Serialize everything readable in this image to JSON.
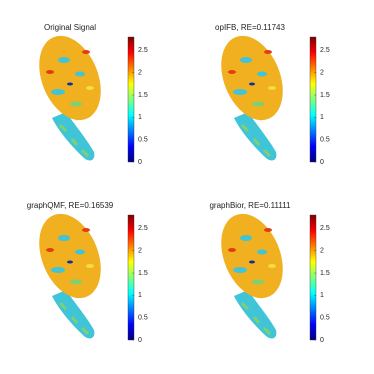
{
  "chart_data": [
    {
      "type": "surface",
      "title": "Original Signal",
      "colormap": "jet",
      "ylim": [
        0,
        2.8
      ],
      "yticks": [
        0,
        0.5,
        1,
        1.5,
        2,
        2.5
      ]
    },
    {
      "type": "surface",
      "title": "opIFB, RE=0.11743",
      "colormap": "jet",
      "ylim": [
        0,
        2.8
      ],
      "yticks": [
        0,
        0.5,
        1,
        1.5,
        2,
        2.5
      ]
    },
    {
      "type": "surface",
      "title": "graphQMF, RE=0.16539",
      "colormap": "jet",
      "ylim": [
        0,
        2.8
      ],
      "yticks": [
        0,
        0.5,
        1,
        1.5,
        2,
        2.5
      ]
    },
    {
      "type": "surface",
      "title": "graphBior, RE=0.11111",
      "colormap": "jet",
      "ylim": [
        0,
        2.8
      ],
      "yticks": [
        0,
        0.5,
        1,
        1.5,
        2,
        2.5
      ]
    }
  ]
}
